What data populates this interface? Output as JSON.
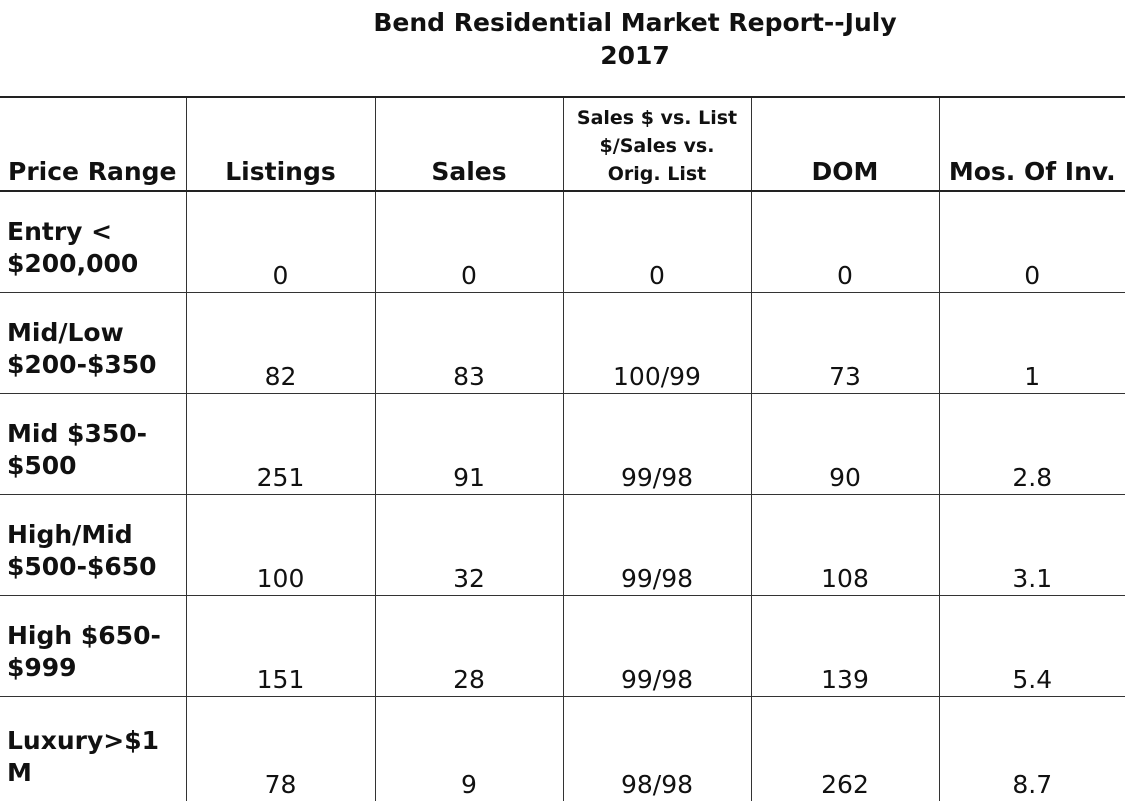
{
  "title_line1": "Bend Residential Market Report--July",
  "title_line2": "2017",
  "headers": {
    "price_range": "Price Range",
    "listings": "Listings",
    "sales": "Sales",
    "sales_vs_list_line1": "Sales $ vs. List",
    "sales_vs_list_line2": "$/Sales vs.",
    "sales_vs_list_line3": "Orig. List",
    "dom": "DOM",
    "mos_inv": "Mos. Of Inv."
  },
  "rows": [
    {
      "range_line1": "Entry <",
      "range_line2": "$200,000",
      "listings": "0",
      "sales": "0",
      "sales_vs_list": "0",
      "dom": "0",
      "mos_inv": "0"
    },
    {
      "range_line1": "Mid/Low",
      "range_line2": "$200-$350",
      "listings": "82",
      "sales": "83",
      "sales_vs_list": "100/99",
      "dom": "73",
      "mos_inv": "1"
    },
    {
      "range_line1": "Mid $350-",
      "range_line2": "$500",
      "listings": "251",
      "sales": "91",
      "sales_vs_list": "99/98",
      "dom": "90",
      "mos_inv": "2.8"
    },
    {
      "range_line1": "High/Mid",
      "range_line2": "$500-$650",
      "listings": "100",
      "sales": "32",
      "sales_vs_list": "99/98",
      "dom": "108",
      "mos_inv": "3.1"
    },
    {
      "range_line1": "High $650-",
      "range_line2": "$999",
      "listings": "151",
      "sales": "28",
      "sales_vs_list": "99/98",
      "dom": "139",
      "mos_inv": "5.4"
    },
    {
      "range_line1": "Luxury>$1",
      "range_line2": "M",
      "listings": "78",
      "sales": "9",
      "sales_vs_list": "98/98",
      "dom": "262",
      "mos_inv": "8.7"
    }
  ]
}
